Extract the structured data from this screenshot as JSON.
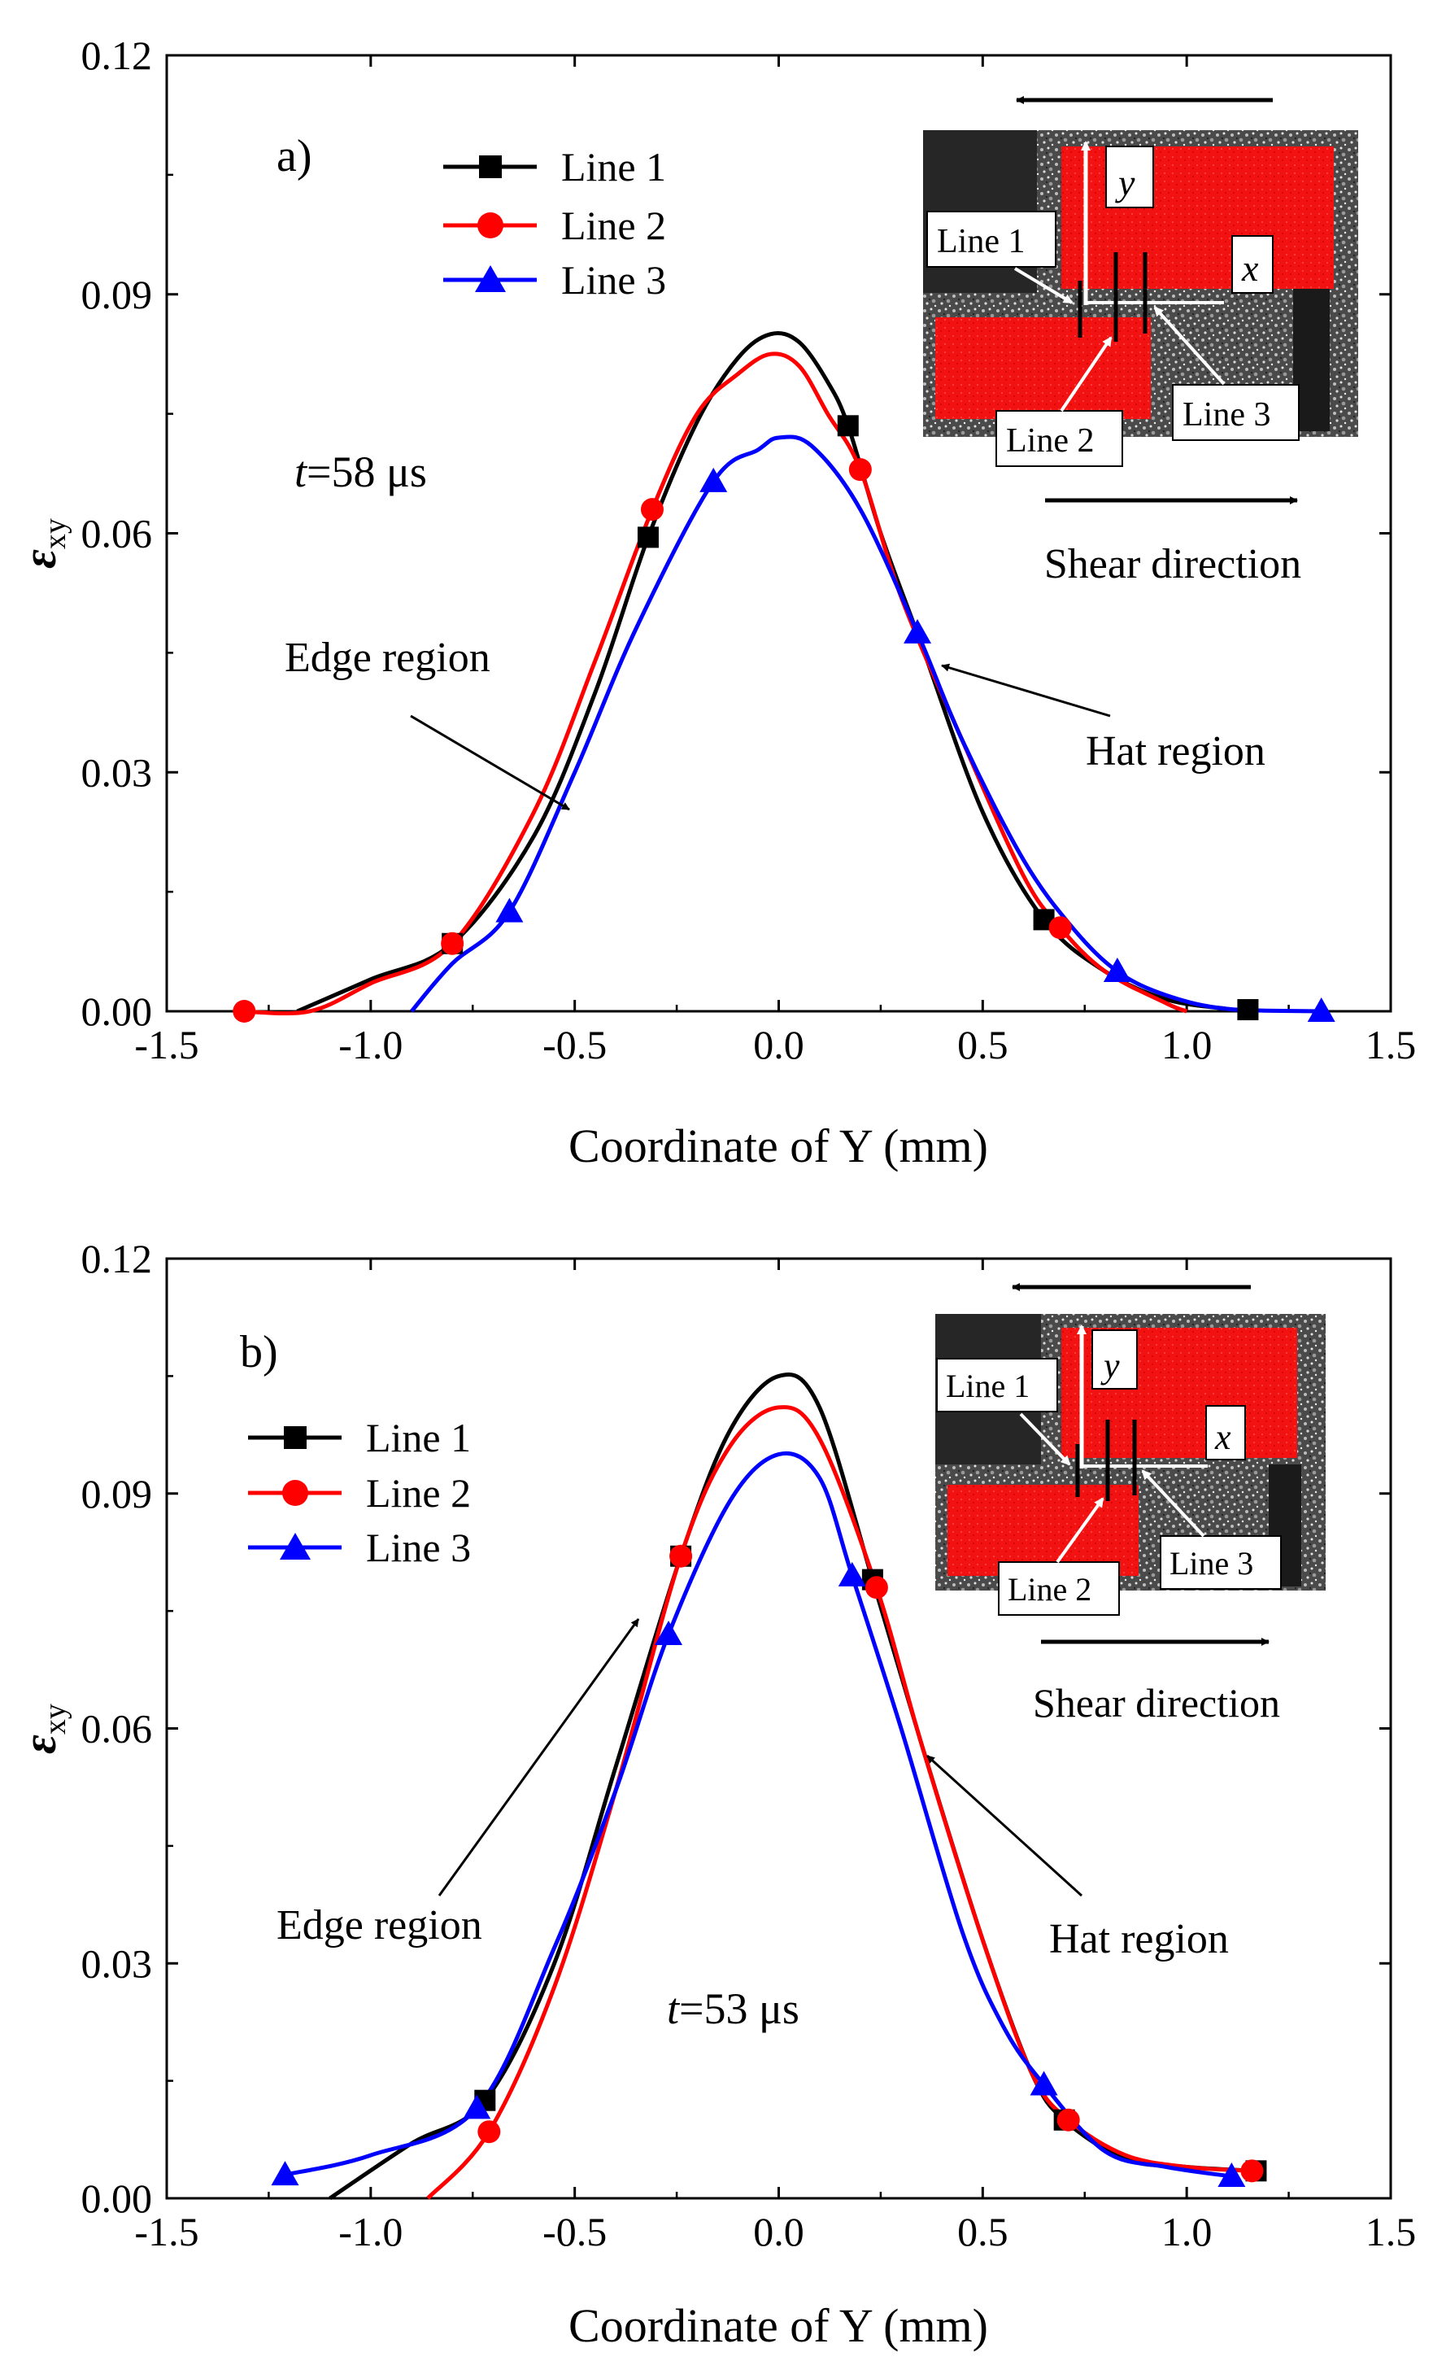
{
  "chart_data": [
    {
      "id": "a",
      "type": "line",
      "panel_label": "a)",
      "time_label_italic": "t",
      "time_label_rest": "=58 μs",
      "xlabel": "Coordinate  of Y (mm)",
      "ylabel_main": "ε",
      "ylabel_sub": "xy",
      "xlim": [
        -1.5,
        1.5
      ],
      "ylim": [
        0,
        0.12
      ],
      "xticks": [
        -1.5,
        -1.0,
        -0.5,
        0.0,
        0.5,
        1.0,
        1.5
      ],
      "xtick_labels": [
        "-1.5",
        "-1.0",
        "-0.5",
        "0.0",
        "0.5",
        "1.0",
        "1.5"
      ],
      "yticks": [
        0,
        0.03,
        0.06,
        0.09,
        0.12
      ],
      "ytick_labels": [
        "0.00",
        "0.03",
        "0.06",
        "0.09",
        "0.12"
      ],
      "legend": [
        "Line 1",
        "Line 2",
        "Line 3"
      ],
      "annotations": {
        "edge": "Edge region",
        "hat": "Hat region",
        "shear": "Shear direction"
      },
      "inset": {
        "line1": "Line 1",
        "line2": "Line 2",
        "line3": "Line 3",
        "y_axis": "y",
        "x_axis": "x"
      },
      "series": [
        {
          "name": "Line 1",
          "color": "#000000",
          "marker": "square",
          "curve": [
            [
              -1.18,
              0
            ],
            [
              -1.0,
              0.004
            ],
            [
              -0.8,
              0.0085
            ],
            [
              -0.6,
              0.022
            ],
            [
              -0.45,
              0.04
            ],
            [
              -0.32,
              0.0595
            ],
            [
              -0.2,
              0.074
            ],
            [
              -0.1,
              0.082
            ],
            [
              -0.02,
              0.085
            ],
            [
              0.05,
              0.084
            ],
            [
              0.12,
              0.079
            ],
            [
              0.17,
              0.0735
            ],
            [
              0.25,
              0.06
            ],
            [
              0.35,
              0.046
            ],
            [
              0.5,
              0.025
            ],
            [
              0.65,
              0.0115
            ],
            [
              0.8,
              0.005
            ],
            [
              0.95,
              0.0015
            ],
            [
              1.1,
              0.0003
            ],
            [
              1.15,
              0
            ]
          ],
          "markers": [
            [
              -0.8,
              0.0085
            ],
            [
              -0.32,
              0.0595
            ],
            [
              0.17,
              0.0735
            ],
            [
              0.65,
              0.0115
            ],
            [
              1.15,
              0.0002
            ]
          ]
        },
        {
          "name": "Line 2",
          "color": "#ff0000",
          "marker": "circle",
          "curve": [
            [
              -1.32,
              0
            ],
            [
              -1.15,
              0
            ],
            [
              -1.0,
              0.0035
            ],
            [
              -0.8,
              0.0085
            ],
            [
              -0.6,
              0.025
            ],
            [
              -0.45,
              0.044
            ],
            [
              -0.31,
              0.063
            ],
            [
              -0.2,
              0.075
            ],
            [
              -0.1,
              0.08
            ],
            [
              -0.02,
              0.0825
            ],
            [
              0.05,
              0.081
            ],
            [
              0.12,
              0.075
            ],
            [
              0.2,
              0.068
            ],
            [
              0.3,
              0.052
            ],
            [
              0.45,
              0.034
            ],
            [
              0.6,
              0.017
            ],
            [
              0.69,
              0.0105
            ],
            [
              0.8,
              0.005
            ],
            [
              0.95,
              0.001
            ],
            [
              1.0,
              0
            ]
          ],
          "markers": [
            [
              -1.31,
              0
            ],
            [
              -0.8,
              0.0085
            ],
            [
              -0.31,
              0.063
            ],
            [
              0.2,
              0.068
            ],
            [
              0.69,
              0.0105
            ]
          ]
        },
        {
          "name": "Line 3",
          "color": "#0000ff",
          "marker": "triangle",
          "curve": [
            [
              -0.9,
              0
            ],
            [
              -0.8,
              0.006
            ],
            [
              -0.66,
              0.0125
            ],
            [
              -0.5,
              0.03
            ],
            [
              -0.35,
              0.048
            ],
            [
              -0.16,
              0.0665
            ],
            [
              -0.05,
              0.0705
            ],
            [
              0.0,
              0.072
            ],
            [
              0.08,
              0.071
            ],
            [
              0.2,
              0.063
            ],
            [
              0.34,
              0.0475
            ],
            [
              0.45,
              0.034
            ],
            [
              0.6,
              0.019
            ],
            [
              0.72,
              0.0105
            ],
            [
              0.83,
              0.005
            ],
            [
              0.95,
              0.002
            ],
            [
              1.1,
              0.0003
            ],
            [
              1.33,
              0
            ]
          ],
          "markers": [
            [
              -0.66,
              0.0125
            ],
            [
              -0.16,
              0.0665
            ],
            [
              0.34,
              0.0475
            ],
            [
              0.83,
              0.005
            ],
            [
              1.33,
              0
            ]
          ]
        }
      ]
    },
    {
      "id": "b",
      "type": "line",
      "panel_label": "b)",
      "time_label_italic": "t",
      "time_label_rest": "=53 μs",
      "xlabel": "Coordinate  of Y (mm)",
      "ylabel_main": "ε",
      "ylabel_sub": "xy",
      "xlim": [
        -1.5,
        1.5
      ],
      "ylim": [
        0,
        0.12
      ],
      "xticks": [
        -1.5,
        -1.0,
        -0.5,
        0.0,
        0.5,
        1.0,
        1.5
      ],
      "xtick_labels": [
        "-1.5",
        "-1.0",
        "-0.5",
        "0.0",
        "0.5",
        "1.0",
        "1.5"
      ],
      "yticks": [
        0,
        0.03,
        0.06,
        0.09,
        0.12
      ],
      "ytick_labels": [
        "0.00",
        "0.03",
        "0.06",
        "0.09",
        "0.12"
      ],
      "legend": [
        "Line 1",
        "Line 2",
        "Line 3"
      ],
      "annotations": {
        "edge": "Edge region",
        "hat": "Hat region",
        "shear": "Shear direction"
      },
      "inset": {
        "line1": "Line 1",
        "line2": "Line 2",
        "line3": "Line 3",
        "y_axis": "y",
        "x_axis": "x"
      },
      "series": [
        {
          "name": "Line 1",
          "color": "#000000",
          "marker": "square",
          "curve": [
            [
              -1.1,
              0
            ],
            [
              -0.9,
              0.007
            ],
            [
              -0.72,
              0.0125
            ],
            [
              -0.55,
              0.03
            ],
            [
              -0.4,
              0.055
            ],
            [
              -0.24,
              0.082
            ],
            [
              -0.12,
              0.098
            ],
            [
              0.0,
              0.105
            ],
            [
              0.1,
              0.101
            ],
            [
              0.23,
              0.079
            ],
            [
              0.35,
              0.058
            ],
            [
              0.5,
              0.033
            ],
            [
              0.62,
              0.016
            ],
            [
              0.7,
              0.01
            ],
            [
              0.85,
              0.005
            ],
            [
              1.0,
              0.004
            ],
            [
              1.17,
              0.0035
            ]
          ],
          "markers": [
            [
              -0.72,
              0.0125
            ],
            [
              -0.24,
              0.082
            ],
            [
              0.23,
              0.079
            ],
            [
              0.7,
              0.01
            ],
            [
              1.17,
              0.0035
            ]
          ]
        },
        {
          "name": "Line 2",
          "color": "#ff0000",
          "marker": "circle",
          "curve": [
            [
              -0.86,
              0
            ],
            [
              -0.71,
              0.0085
            ],
            [
              -0.55,
              0.027
            ],
            [
              -0.4,
              0.052
            ],
            [
              -0.24,
              0.082
            ],
            [
              -0.12,
              0.096
            ],
            [
              0.0,
              0.101
            ],
            [
              0.1,
              0.097
            ],
            [
              0.24,
              0.078
            ],
            [
              0.35,
              0.058
            ],
            [
              0.5,
              0.033
            ],
            [
              0.62,
              0.016
            ],
            [
              0.71,
              0.01
            ],
            [
              0.85,
              0.0055
            ],
            [
              1.0,
              0.004
            ],
            [
              1.16,
              0.0035
            ]
          ],
          "markers": [
            [
              -0.71,
              0.0085
            ],
            [
              -0.24,
              0.082
            ],
            [
              0.24,
              0.078
            ],
            [
              0.71,
              0.01
            ],
            [
              1.16,
              0.0035
            ]
          ]
        },
        {
          "name": "Line 3",
          "color": "#0000ff",
          "marker": "triangle",
          "curve": [
            [
              -1.21,
              0.003
            ],
            [
              -1.0,
              0.0055
            ],
            [
              -0.74,
              0.0115
            ],
            [
              -0.55,
              0.032
            ],
            [
              -0.4,
              0.052
            ],
            [
              -0.27,
              0.072
            ],
            [
              -0.12,
              0.089
            ],
            [
              0.0,
              0.095
            ],
            [
              0.1,
              0.092
            ],
            [
              0.18,
              0.0795
            ],
            [
              0.3,
              0.06
            ],
            [
              0.45,
              0.034
            ],
            [
              0.55,
              0.022
            ],
            [
              0.65,
              0.0145
            ],
            [
              0.8,
              0.006
            ],
            [
              0.95,
              0.004
            ],
            [
              1.11,
              0.0028
            ]
          ],
          "markers": [
            [
              -1.21,
              0.003
            ],
            [
              -0.74,
              0.0115
            ],
            [
              -0.27,
              0.072
            ],
            [
              0.18,
              0.0795
            ],
            [
              0.65,
              0.0145
            ],
            [
              1.11,
              0.0028
            ]
          ]
        }
      ]
    }
  ]
}
